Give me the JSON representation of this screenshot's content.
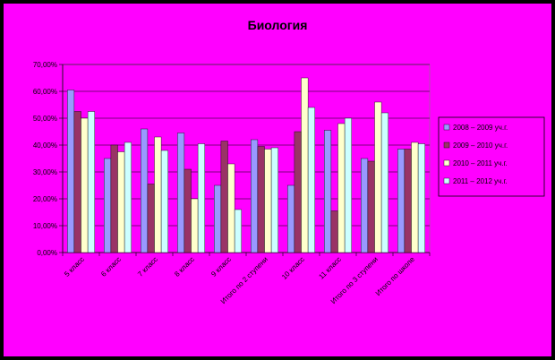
{
  "chart_data": {
    "type": "bar",
    "title": "Биология",
    "xlabel": "",
    "ylabel": "",
    "ylim": [
      0,
      70
    ],
    "y_ticks": [
      "0,00%",
      "10,00%",
      "20,00%",
      "30,00%",
      "40,00%",
      "50,00%",
      "60,00%",
      "70,00%"
    ],
    "grid": true,
    "legend_position": "right",
    "categories": [
      "5 класс",
      "6 класс",
      "7 класс",
      "8 класс",
      "9 класс",
      "Итого по 2 ступени",
      "10 класс",
      "11 класс",
      "Итого по 3 ступени",
      "Итого по школе"
    ],
    "series": [
      {
        "name": "2008 – 2009 уч.г.",
        "color": "#9999ff",
        "values": [
          60.5,
          35,
          46,
          44.5,
          25,
          42,
          25,
          45.5,
          35,
          38.5
        ]
      },
      {
        "name": "2009 – 2010 уч.г.",
        "color": "#993366",
        "values": [
          52.5,
          40,
          25.5,
          31,
          41.5,
          39.5,
          45,
          15.5,
          34,
          38.5
        ]
      },
      {
        "name": "2010 – 2011 уч.г.",
        "color": "#ffffcc",
        "values": [
          50,
          37.5,
          43,
          20,
          33,
          38.5,
          65,
          48,
          56,
          41
        ]
      },
      {
        "name": "2011 – 2012 уч.г.",
        "color": "#ccffff",
        "values": [
          52.5,
          41,
          38,
          40.5,
          16,
          39,
          54,
          50,
          52,
          40.5
        ]
      }
    ]
  }
}
